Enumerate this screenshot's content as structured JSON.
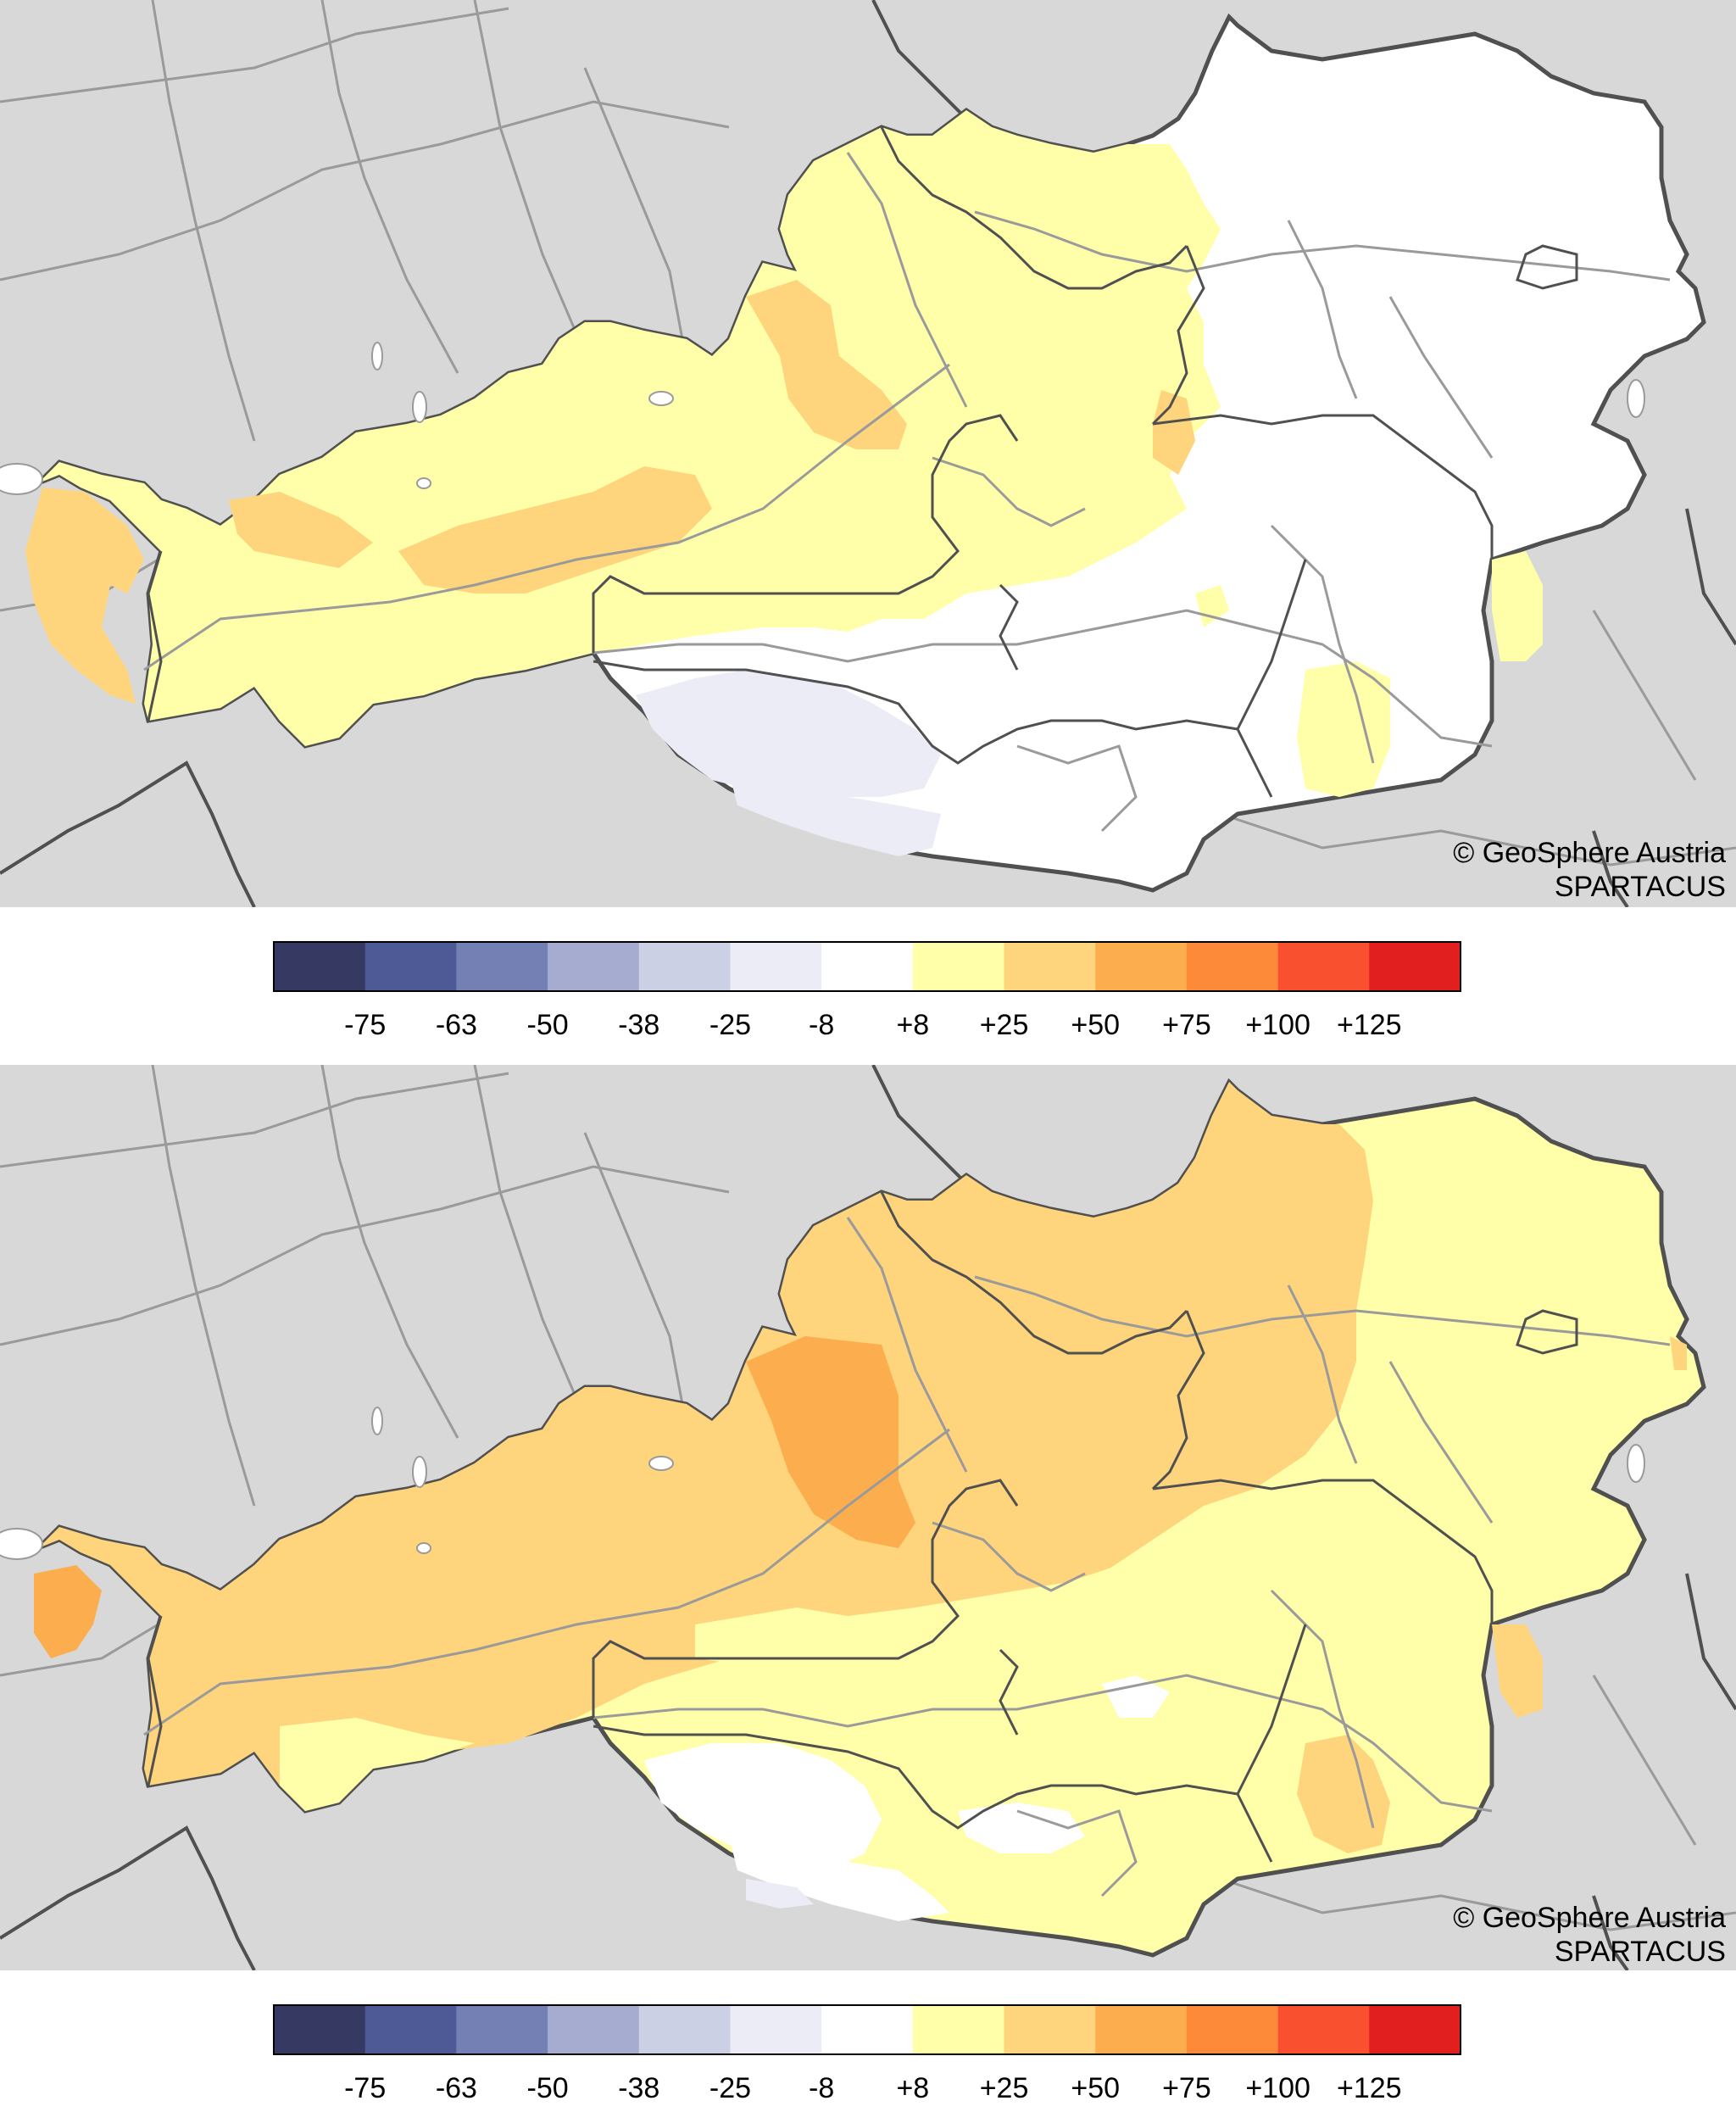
{
  "maps": [
    {
      "id": "top",
      "credit_line1": "© GeoSphere Austria",
      "credit_line2": "SPARTACUS"
    },
    {
      "id": "bottom",
      "credit_line1": "© GeoSphere Austria",
      "credit_line2": "SPARTACUS"
    }
  ],
  "legend": {
    "colors": [
      "#363a62",
      "#4e5a96",
      "#7480b4",
      "#a6acd0",
      "#ccd0e4",
      "#ececf6",
      "#ffffff",
      "#ffffaa",
      "#fed47c",
      "#fcae4e",
      "#fc8a38",
      "#f95130",
      "#e11f1f"
    ],
    "tick_labels": [
      "-75",
      "-63",
      "-50",
      "-38",
      "-25",
      "-8",
      "+8",
      "+25",
      "+50",
      "+75",
      "+100",
      "+125"
    ]
  },
  "colors": {
    "background": "#d8d8d8",
    "border": "#505050",
    "river": "#9a9a9a"
  }
}
